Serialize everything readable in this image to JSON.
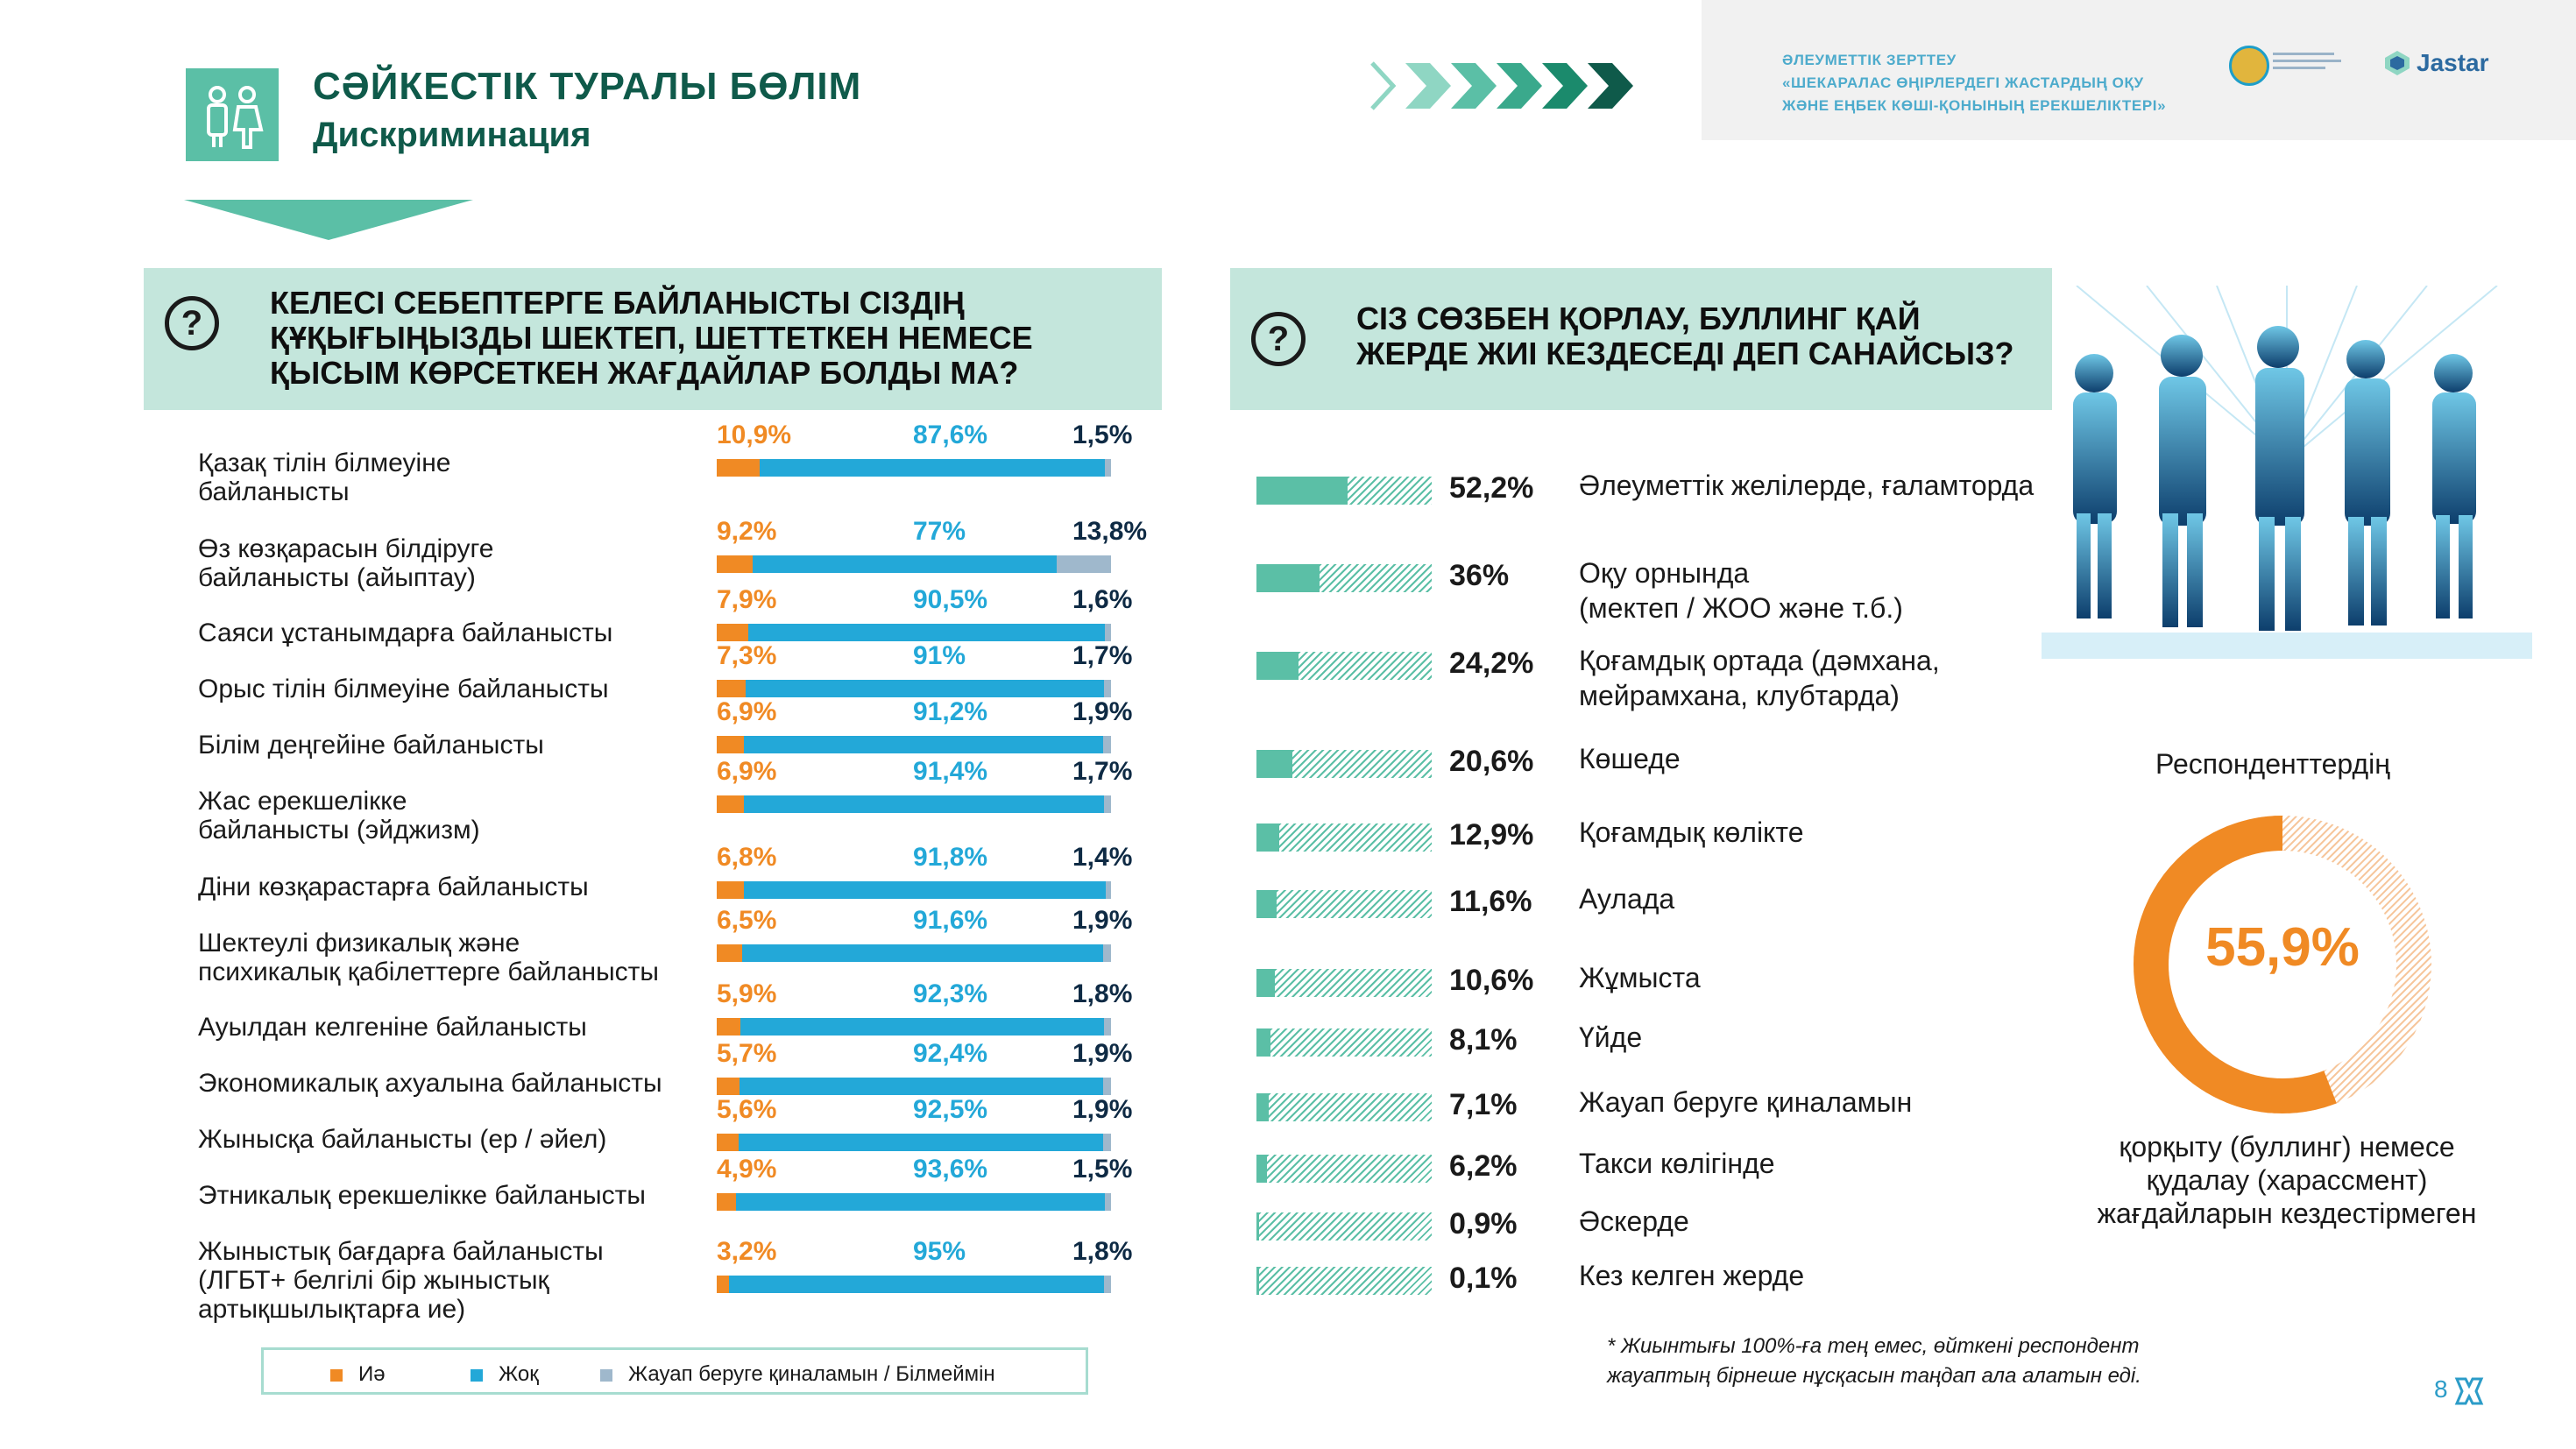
{
  "header": {
    "title": "СӘЙКЕСТІК ТУРАЛЫ БӨЛІМ",
    "subtitle": "Дискриминация"
  },
  "top_box": {
    "line1": "ӘЛЕУМЕТТІК ЗЕРТТЕУ",
    "line2": "«ШЕКАРАЛАС ӨҢІРЛЕРДЕГІ ЖАСТАРДЫҢ ОҚУ",
    "line3": "ЖӘНЕ ЕҢБЕК КӨШІ-ҚОНЫНЫҢ ЕРЕКШЕЛІКТЕРІ»",
    "logo_brand": "Jastar"
  },
  "question_left": {
    "icon_glyph": "?",
    "text_line1": "КЕЛЕСІ СЕБЕПТЕРГЕ БАЙЛАНЫСТЫ СІЗДІҢ",
    "text_line2": "ҚҰҚЫҒЫҢЫЗДЫ ШЕКТЕП, ШЕТТЕТКЕН НЕМЕСЕ",
    "text_line3": "ҚЫСЫМ КӨРСЕТКЕН ЖАҒДАЙЛАР БОЛДЫ МА?"
  },
  "question_right": {
    "icon_glyph": "?",
    "text_line1": "СІЗ СӨЗБЕН ҚОРЛАУ, БУЛЛИНГ ҚАЙ",
    "text_line2": "ЖЕРДЕ ЖИІ КЕЗДЕСЕДІ ДЕП САНАЙСЫЗ?"
  },
  "colors": {
    "yes": "#f08a24",
    "no": "#23a8d8",
    "na": "#9fb8cc",
    "accent_teal": "#5bbfa6",
    "dark_teal": "#0f5a4a"
  },
  "chart_data": [
    {
      "type": "bar",
      "orientation": "horizontal-stacked",
      "categories": [
        [
          "Қазақ тілін білмеуіне",
          "байланысты"
        ],
        [
          "Өз көзқарасын білдіруге",
          "байланысты (айыптау)"
        ],
        [
          "Саяси ұстанымдарға байланысты"
        ],
        [
          "Орыс тілін білмеуіне байланысты"
        ],
        [
          "Білім деңгейіне байланысты"
        ],
        [
          "Жас ерекшелікке",
          "байланысты (эйджизм)"
        ],
        [
          "Діни көзқарастарға байланысты"
        ],
        [
          "Шектеулі физикалық және",
          "психикалық қабілеттерге байланысты"
        ],
        [
          "Ауылдан келгеніне байланысты"
        ],
        [
          "Экономикалық ахуалына байланысты"
        ],
        [
          "Жынысқа байланысты (ер / әйел)"
        ],
        [
          "Этникалық ерекшелікке байланысты"
        ],
        [
          "Жыныстық бағдарға байланысты",
          "(ЛГБТ+ белгілі бір жыныстық",
          "артықшылықтарға ие)"
        ]
      ],
      "series": [
        {
          "name": "Иә",
          "values": [
            10.9,
            9.2,
            7.9,
            7.3,
            6.9,
            6.9,
            6.8,
            6.5,
            5.9,
            5.7,
            5.6,
            4.9,
            3.2
          ],
          "labels": [
            "10,9%",
            "9,2%",
            "7,9%",
            "7,3%",
            "6,9%",
            "6,9%",
            "6,8%",
            "6,5%",
            "5,9%",
            "5,7%",
            "5,6%",
            "4,9%",
            "3,2%"
          ]
        },
        {
          "name": "Жоқ",
          "values": [
            87.6,
            77,
            90.5,
            91,
            91.2,
            91.4,
            91.8,
            91.6,
            92.3,
            92.4,
            92.5,
            93.6,
            95
          ],
          "labels": [
            "87,6%",
            "77%",
            "90,5%",
            "91%",
            "91,2%",
            "91,4%",
            "91,8%",
            "91,6%",
            "92,3%",
            "92,4%",
            "92,5%",
            "93,6%",
            "95%"
          ]
        },
        {
          "name": "Жауап беруге қиналамын / Білмеймін",
          "values": [
            1.5,
            13.8,
            1.6,
            1.7,
            1.9,
            1.7,
            1.4,
            1.9,
            1.8,
            1.9,
            1.9,
            1.5,
            1.8
          ],
          "labels": [
            "1,5%",
            "13,8%",
            "1,6%",
            "1,7%",
            "1,9%",
            "1,7%",
            "1,4%",
            "1,9%",
            "1,8%",
            "1,9%",
            "1,9%",
            "1,5%",
            "1,8%"
          ]
        }
      ],
      "xlim": [
        0,
        100
      ],
      "legend": "bottom"
    },
    {
      "type": "bar",
      "orientation": "horizontal",
      "categories": [
        [
          "Әлеуметтік желілерде, ғаламторда"
        ],
        [
          "Оқу орнында",
          "(мектеп / ЖОО және т.б.)"
        ],
        [
          "Қоғамдық ортада (дәмхана,",
          "мейрамхана, клубтарда)"
        ],
        [
          "Көшеде"
        ],
        [
          "Қоғамдық көлікте"
        ],
        [
          "Аулада"
        ],
        [
          "Жұмыста"
        ],
        [
          "Үйде"
        ],
        [
          "Жауап беруге қиналамын"
        ],
        [
          "Такси көлігінде"
        ],
        [
          "Әскерде"
        ],
        [
          "Кез келген жерде"
        ]
      ],
      "values": [
        52.2,
        36,
        24.2,
        20.6,
        12.9,
        11.6,
        10.6,
        8.1,
        7.1,
        6.2,
        0.9,
        0.1
      ],
      "labels": [
        "52,2%",
        "36%",
        "24,2%",
        "20,6%",
        "12,9%",
        "11,6%",
        "10,6%",
        "8,1%",
        "7,1%",
        "6,2%",
        "0,9%",
        "0,1%"
      ],
      "xlim": [
        0,
        100
      ]
    },
    {
      "type": "pie",
      "style": "donut",
      "title": "Респонденттердің",
      "value": 55.9,
      "value_label": "55,9%",
      "caption": [
        "қорқыту (буллинг) немесе",
        "қудалау (харассмент)",
        "жағдайларын кездестірмеген"
      ]
    }
  ],
  "footnote": {
    "line1": "* Жиынтығы  100%-ға тең емес, өйткені респондент",
    "line2": "жауаптың бірнеше нұсқасын таңдап ала алатын еді."
  },
  "page_number": "8"
}
